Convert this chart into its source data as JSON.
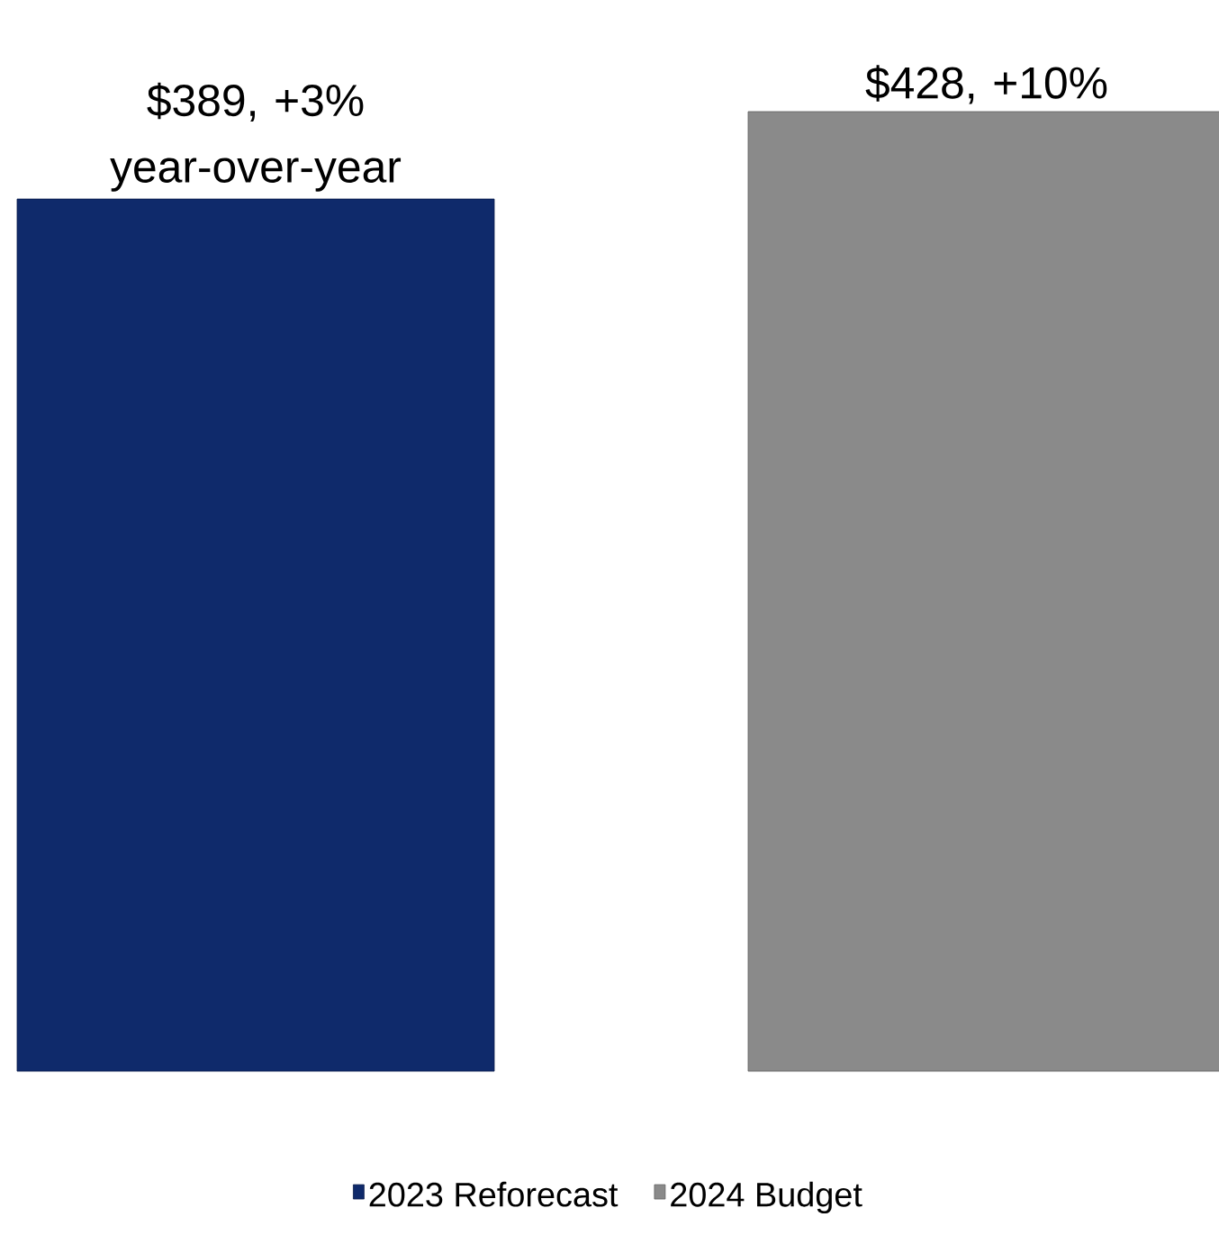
{
  "chart_data": {
    "type": "bar",
    "categories": [
      null,
      null
    ],
    "series": [
      {
        "name": "2023 Reforecast",
        "color": "#0f2a6b",
        "values": [
          389,
          null
        ],
        "value_labels": [
          "$389, +3% year-over-year",
          null
        ]
      },
      {
        "name": "2024 Budget",
        "color": "#8a8a8a",
        "values": [
          null,
          428
        ],
        "value_labels": [
          null,
          "$428, +10%"
        ]
      }
    ],
    "stacked": true,
    "legend": "bottom"
  }
}
